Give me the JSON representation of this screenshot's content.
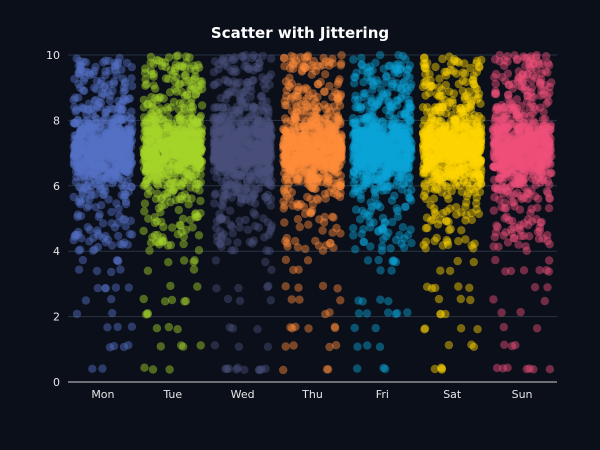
{
  "chart_data": {
    "type": "scatter",
    "title": "Scatter with Jittering",
    "xlabel": "",
    "ylabel": "",
    "categories": [
      "Mon",
      "Tue",
      "Wed",
      "Thu",
      "Fri",
      "Sat",
      "Sun"
    ],
    "ylim": [
      0,
      10
    ],
    "yticks": [
      0,
      2,
      4,
      6,
      8,
      10
    ],
    "grid": true,
    "legend": "none",
    "series": [
      {
        "category": "Mon",
        "color": "#5470c6",
        "values_estimate": "dense cluster 6-8, spread 4-10, sparse points 0-4"
      },
      {
        "category": "Tue",
        "color": "#a6d42a",
        "values_estimate": "dense cluster 6-8, spread 4-10, sparse points 0-4"
      },
      {
        "category": "Wed",
        "color": "#4a4f7a",
        "values_estimate": "dense cluster 6-8, spread 4-10, sparse points 0-4"
      },
      {
        "category": "Thu",
        "color": "#ff8c3a",
        "values_estimate": "dense cluster 6-8, spread 4-10, sparse points 0-4"
      },
      {
        "category": "Fri",
        "color": "#0aa5d8",
        "values_estimate": "dense cluster 6-8, spread 4-10, sparse points 0-4"
      },
      {
        "category": "Sat",
        "color": "#ffd400",
        "values_estimate": "dense cluster 6-8, spread 4-10, sparse points 0-4"
      },
      {
        "category": "Sun",
        "color": "#f0507a",
        "values_estimate": "dense cluster 6-8, spread 4-10, sparse points 0-4"
      }
    ]
  }
}
